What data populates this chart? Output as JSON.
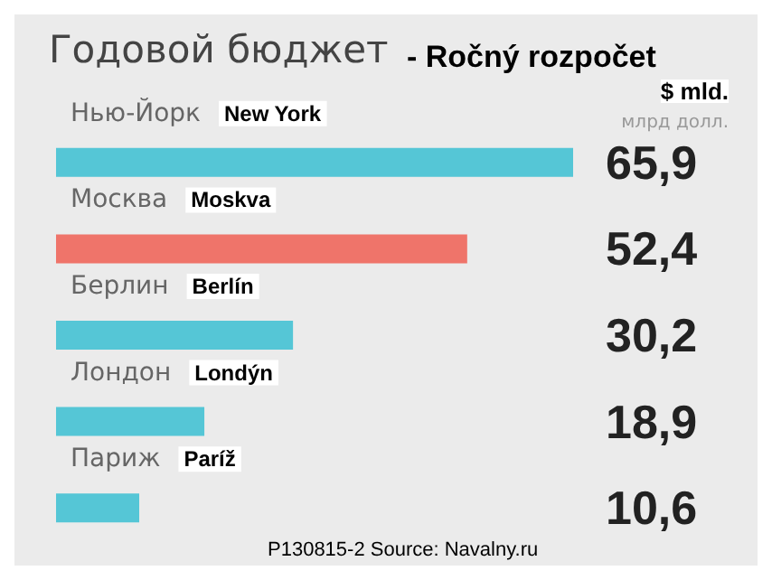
{
  "chart_data": {
    "type": "bar",
    "orientation": "horizontal",
    "title": "Годовой бюджет",
    "subtitle": "- Ročný rozpočet",
    "categories": [
      "Нью-Йорк",
      "Москва",
      "Берлин",
      "Лондон",
      "Париж"
    ],
    "values": [
      65.9,
      52.4,
      30.2,
      18.9,
      10.6
    ],
    "colors": [
      "#55c6d6",
      "#ef746a",
      "#55c6d6",
      "#55c6d6",
      "#55c6d6"
    ],
    "value_labels": [
      "65,9",
      "52,4",
      "30,2",
      "18,9",
      "10,6"
    ],
    "annotations": [
      "$ mld.",
      "млрд долл.",
      "P130815-2 Source: Navalny.ru",
      "New York",
      "Moskva",
      "Berlín",
      "Londýn",
      "Paríž"
    ]
  }
}
